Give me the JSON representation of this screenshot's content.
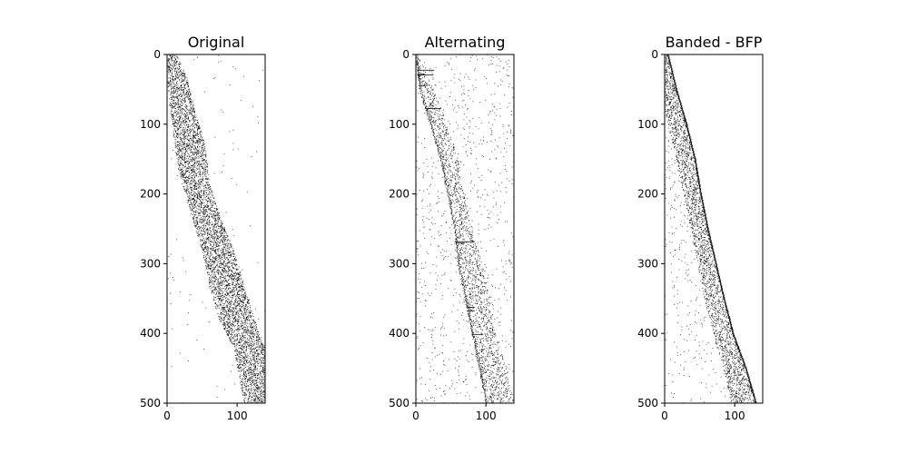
{
  "chart_data": [
    {
      "type": "heatmap",
      "subtype": "sparsity-pattern",
      "title": "Original",
      "rows": 500,
      "cols": 140,
      "xlim": [
        0,
        140
      ],
      "ylim": [
        500,
        0
      ],
      "xticks": [
        0,
        100
      ],
      "yticks": [
        0,
        100,
        200,
        300,
        400,
        500
      ],
      "colors": {
        "nonzero": "#000000",
        "zero": "#ffffff"
      },
      "pattern": "diffuse-staircase",
      "band": [
        {
          "row": 0,
          "col_start": 0,
          "col_end": 14
        },
        {
          "row": 30,
          "col_start": 0,
          "col_end": 28
        },
        {
          "row": 80,
          "col_start": 5,
          "col_end": 40
        },
        {
          "row": 130,
          "col_start": 10,
          "col_end": 55
        },
        {
          "row": 180,
          "col_start": 20,
          "col_end": 60
        },
        {
          "row": 230,
          "col_start": 35,
          "col_end": 75
        },
        {
          "row": 280,
          "col_start": 50,
          "col_end": 95
        },
        {
          "row": 330,
          "col_start": 60,
          "col_end": 110
        },
        {
          "row": 380,
          "col_start": 75,
          "col_end": 125
        },
        {
          "row": 420,
          "col_start": 95,
          "col_end": 140
        },
        {
          "row": 500,
          "col_start": 110,
          "col_end": 140
        }
      ]
    },
    {
      "type": "heatmap",
      "subtype": "sparsity-pattern",
      "title": "Alternating",
      "rows": 500,
      "cols": 140,
      "xlim": [
        0,
        140
      ],
      "ylim": [
        500,
        0
      ],
      "xticks": [
        0,
        100
      ],
      "yticks": [
        0,
        100,
        200,
        300,
        400,
        500
      ],
      "colors": {
        "nonzero": "#000000",
        "zero": "#ffffff"
      },
      "pattern": "scattered-diagonal",
      "band": [
        {
          "row": 0,
          "col_start": 0,
          "col_end": 3
        },
        {
          "row": 50,
          "col_start": 5,
          "col_end": 25
        },
        {
          "row": 100,
          "col_start": 20,
          "col_end": 45
        },
        {
          "row": 150,
          "col_start": 35,
          "col_end": 60
        },
        {
          "row": 200,
          "col_start": 45,
          "col_end": 70
        },
        {
          "row": 250,
          "col_start": 55,
          "col_end": 80
        },
        {
          "row": 300,
          "col_start": 60,
          "col_end": 95
        },
        {
          "row": 350,
          "col_start": 70,
          "col_end": 105
        },
        {
          "row": 400,
          "col_start": 80,
          "col_end": 115
        },
        {
          "row": 450,
          "col_start": 90,
          "col_end": 130
        },
        {
          "row": 500,
          "col_start": 100,
          "col_end": 140
        }
      ]
    },
    {
      "type": "heatmap",
      "subtype": "sparsity-pattern",
      "title": "Banded - BFP",
      "rows": 500,
      "cols": 140,
      "xlim": [
        0,
        140
      ],
      "ylim": [
        500,
        0
      ],
      "xticks": [
        0,
        100
      ],
      "yticks": [
        0,
        100,
        200,
        300,
        400,
        500
      ],
      "colors": {
        "nonzero": "#000000",
        "zero": "#ffffff"
      },
      "pattern": "sharp-curved-band",
      "band": [
        {
          "row": 0,
          "col_start": 0,
          "col_end": 6
        },
        {
          "row": 50,
          "col_start": 0,
          "col_end": 22
        },
        {
          "row": 100,
          "col_start": 10,
          "col_end": 38
        },
        {
          "row": 150,
          "col_start": 22,
          "col_end": 50
        },
        {
          "row": 200,
          "col_start": 32,
          "col_end": 58
        },
        {
          "row": 250,
          "col_start": 42,
          "col_end": 68
        },
        {
          "row": 300,
          "col_start": 52,
          "col_end": 80
        },
        {
          "row": 350,
          "col_start": 62,
          "col_end": 92
        },
        {
          "row": 400,
          "col_start": 75,
          "col_end": 105
        },
        {
          "row": 450,
          "col_start": 88,
          "col_end": 125
        },
        {
          "row": 500,
          "col_start": 100,
          "col_end": 140
        }
      ]
    }
  ]
}
